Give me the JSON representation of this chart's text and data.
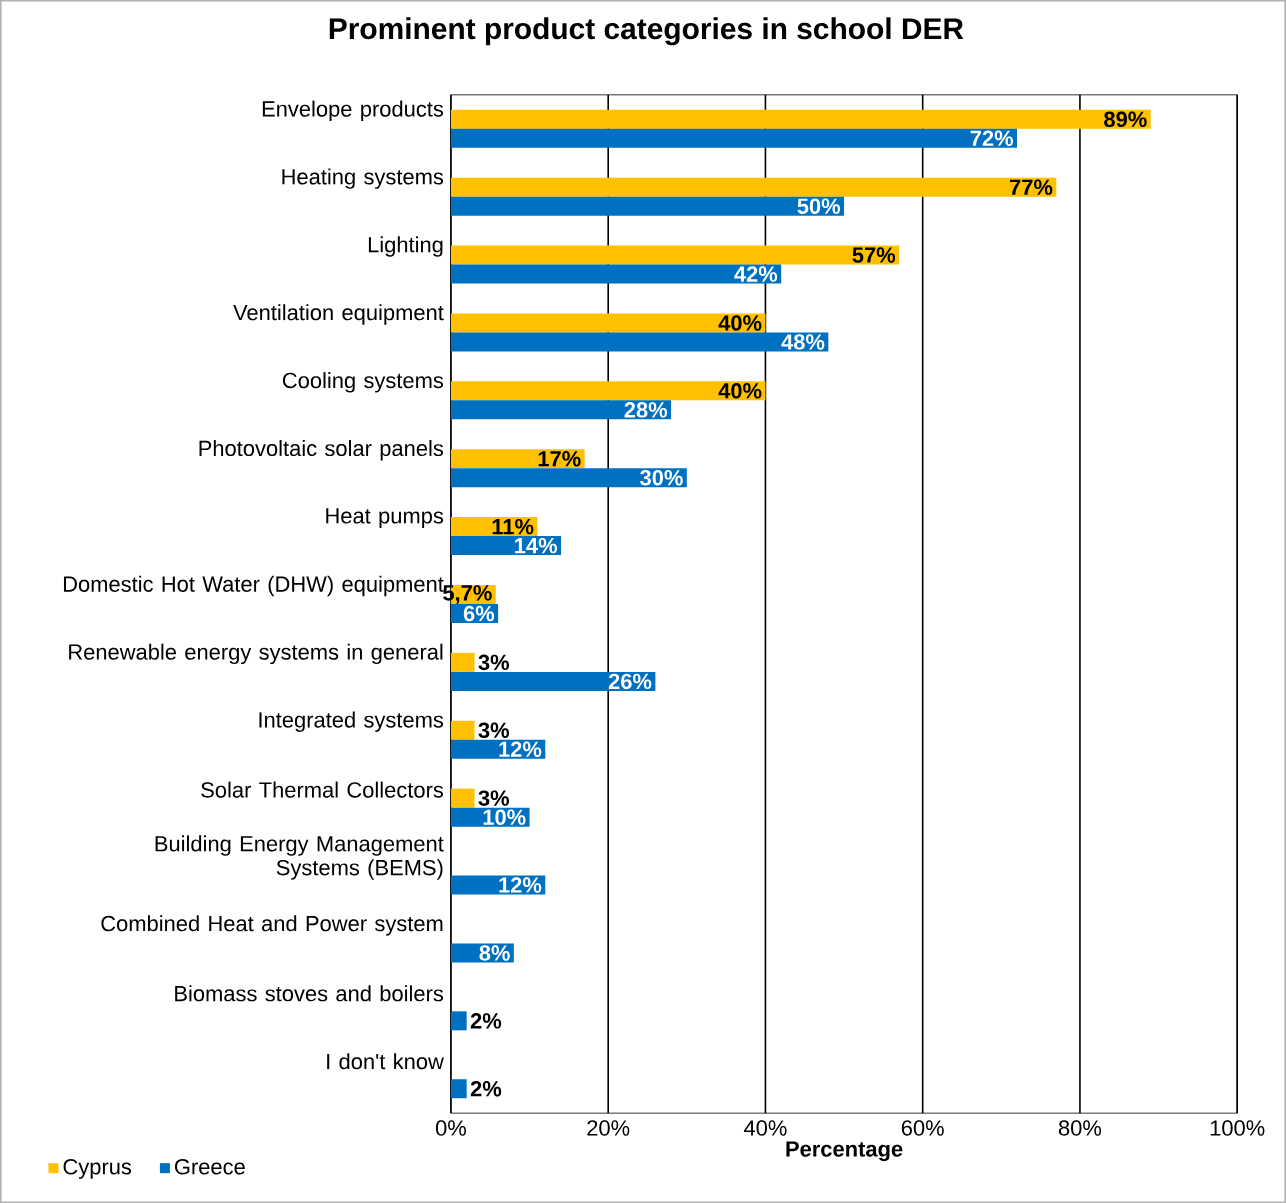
{
  "chart_data": {
    "type": "bar",
    "orientation": "horizontal",
    "title": "Prominent product categories in school DER",
    "xlabel": "Percentage",
    "categories": [
      "Envelope products",
      "Heating systems",
      "Lighting",
      "Ventilation equipment",
      "Cooling systems",
      "Photovoltaic solar panels",
      "Heat pumps",
      "Domestic Hot Water (DHW) equipment",
      "Renewable energy systems in general",
      "Integrated systems",
      "Solar Thermal Collectors",
      "Building Energy Management Systems (BEMS)",
      "Combined Heat and Power system",
      "Biomass stoves and boilers",
      "I don't know"
    ],
    "series": [
      {
        "name": "Cyprus",
        "color": "#ffc000",
        "values": [
          89,
          77,
          57,
          40,
          40,
          17,
          11,
          5.7,
          3,
          3,
          3,
          null,
          null,
          null,
          null
        ],
        "value_labels": [
          "89%",
          "77%",
          "57%",
          "40%",
          "40%",
          "17%",
          "11%",
          "5,7%",
          "3%",
          "3%",
          "3%",
          null,
          null,
          null,
          null
        ]
      },
      {
        "name": "Greece",
        "color": "#0070c0",
        "values": [
          72,
          50,
          42,
          48,
          28,
          30,
          14,
          6,
          26,
          12,
          10,
          12,
          8,
          2,
          2
        ],
        "value_labels": [
          "72%",
          "50%",
          "42%",
          "48%",
          "28%",
          "30%",
          "14%",
          "6%",
          "26%",
          "12%",
          "10%",
          "12%",
          "8%",
          "2%",
          "2%"
        ]
      }
    ],
    "xlim": [
      0,
      100
    ],
    "xticks": [
      {
        "value": 0,
        "label": "0%"
      },
      {
        "value": 20,
        "label": "20%"
      },
      {
        "value": 40,
        "label": "40%"
      },
      {
        "value": 60,
        "label": "60%"
      },
      {
        "value": 80,
        "label": "80%"
      },
      {
        "value": 100,
        "label": "100%"
      }
    ],
    "grid": "x",
    "legend": "bottom left"
  }
}
